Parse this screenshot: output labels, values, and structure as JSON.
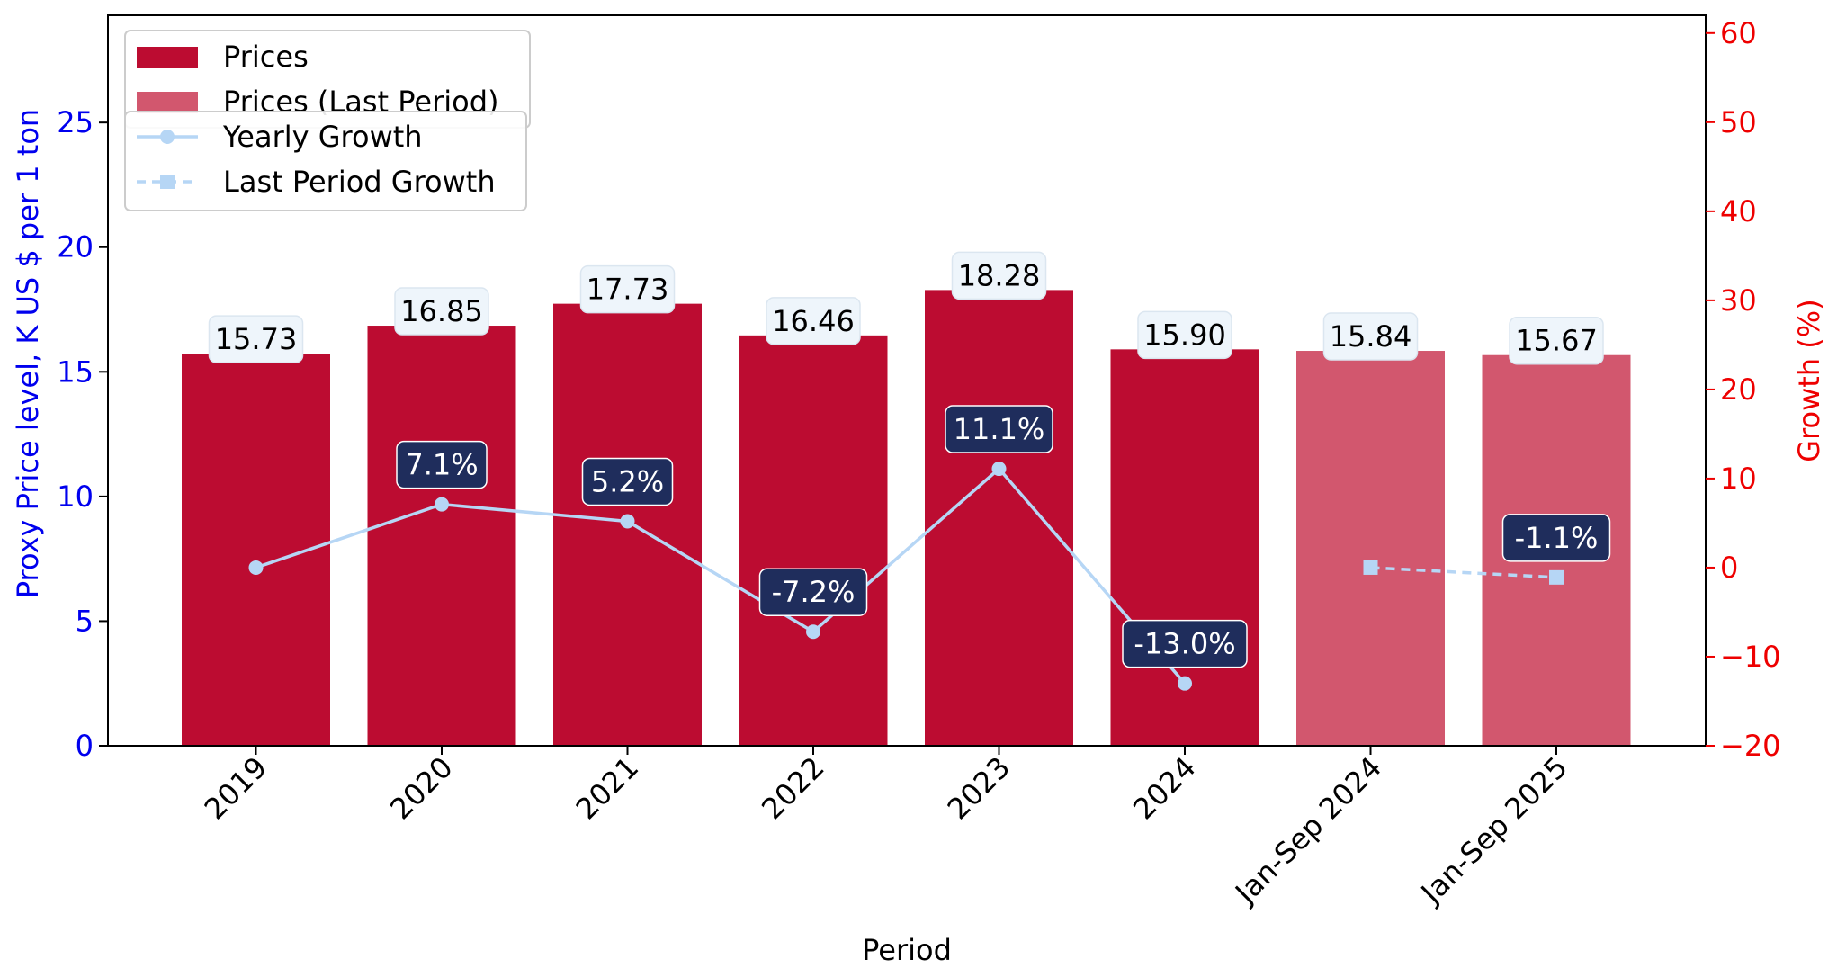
{
  "chart_data": {
    "type": "bar",
    "categories": [
      "2019",
      "2020",
      "2021",
      "2022",
      "2023",
      "2024",
      "Jan-Sep 2024",
      "Jan-Sep 2025"
    ],
    "xlabel": "Period",
    "ylabel": "Proxy Price level, K US $ per 1 ton",
    "y2label": "Growth (%)",
    "ylim": [
      0,
      29.3
    ],
    "y2lim": [
      -20,
      62
    ],
    "y_ticks": [
      0,
      5,
      10,
      15,
      20,
      25
    ],
    "y2_ticks": [
      -20,
      -10,
      0,
      10,
      20,
      30,
      40,
      50,
      60
    ],
    "series": [
      {
        "name": "Prices",
        "kind": "bar",
        "color": "#bc0c31",
        "values": [
          15.73,
          16.85,
          17.73,
          16.46,
          18.28,
          15.9,
          null,
          null
        ],
        "labels": [
          "15.73",
          "16.85",
          "17.73",
          "16.46",
          "18.28",
          "15.90",
          null,
          null
        ]
      },
      {
        "name": "Prices (Last Period)",
        "kind": "bar",
        "color": "#d2576e",
        "values": [
          null,
          null,
          null,
          null,
          null,
          null,
          15.84,
          15.67
        ],
        "labels": [
          null,
          null,
          null,
          null,
          null,
          null,
          "15.84",
          "15.67"
        ]
      },
      {
        "name": "Yearly Growth",
        "kind": "line",
        "axis": "right",
        "color": "#b6d6f5",
        "values": [
          0,
          7.1,
          5.2,
          -7.2,
          11.1,
          -13.0,
          null,
          null
        ],
        "labels": [
          null,
          "7.1%",
          "5.2%",
          "-7.2%",
          "11.1%",
          "-13.0%",
          null,
          null
        ]
      },
      {
        "name": "Last Period Growth",
        "kind": "line",
        "axis": "right",
        "style": "dashed",
        "marker": "square",
        "color": "#b6d6f5",
        "values": [
          null,
          null,
          null,
          null,
          null,
          null,
          0,
          -1.1
        ],
        "labels": [
          null,
          null,
          null,
          null,
          null,
          null,
          null,
          "-1.1%"
        ]
      }
    ],
    "left_axis_color": "#0000ee",
    "right_axis_color": "#ee0000",
    "growth_label_bg": "#1f2d5c",
    "bar_label_bg": "#eef5fb",
    "legend_placement": "top-left",
    "grid": false
  }
}
